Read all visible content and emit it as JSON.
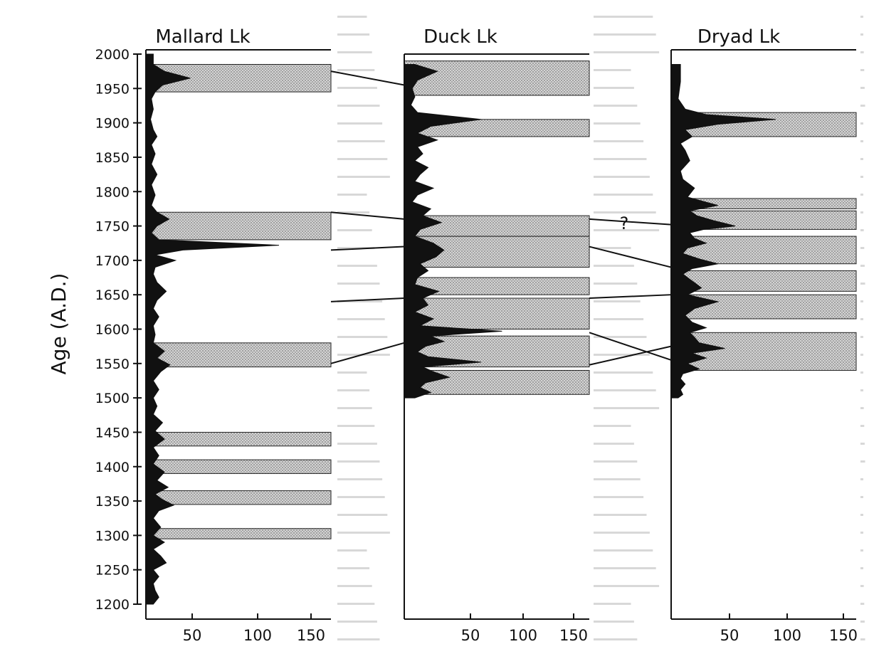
{
  "chart_data": {
    "type": "area",
    "ylabel": "Age (A.D.)",
    "y_ticks": [
      "2000",
      "1950",
      "1900",
      "1850",
      "1800",
      "1750",
      "1700",
      "1650",
      "1600",
      "1550",
      "1500",
      "1450",
      "1400",
      "1350",
      "1300",
      "1250",
      "1200"
    ],
    "ylim": [
      1200,
      2000
    ],
    "correlation_marker": "?",
    "panels": [
      {
        "title": "Mallard Lk",
        "x_ticks": [
          "50",
          "100",
          "150"
        ],
        "xlim": [
          0,
          160
        ],
        "ages": [
          2000,
          1985,
          1975,
          1965,
          1955,
          1945,
          1935,
          1920,
          1905,
          1890,
          1880,
          1868,
          1855,
          1840,
          1825,
          1810,
          1795,
          1780,
          1770,
          1760,
          1750,
          1740,
          1730,
          1722,
          1715,
          1708,
          1700,
          1690,
          1680,
          1668,
          1655,
          1642,
          1630,
          1618,
          1605,
          1592,
          1580,
          1568,
          1558,
          1548,
          1538,
          1525,
          1512,
          1500,
          1488,
          1476,
          1464,
          1452,
          1440,
          1428,
          1416,
          1404,
          1392,
          1380,
          1370,
          1360,
          1352,
          1344,
          1336,
          1325,
          1312,
          1300,
          1290,
          1280,
          1270,
          1260,
          1250,
          1240,
          1230,
          1220,
          1210,
          1200
        ],
        "values": [
          8,
          8,
          20,
          48,
          18,
          10,
          6,
          8,
          5,
          8,
          12,
          6,
          10,
          6,
          12,
          6,
          10,
          6,
          12,
          25,
          12,
          6,
          14,
          120,
          40,
          10,
          32,
          10,
          8,
          12,
          22,
          12,
          8,
          14,
          8,
          10,
          8,
          20,
          12,
          26,
          16,
          8,
          14,
          8,
          12,
          8,
          18,
          10,
          20,
          8,
          14,
          8,
          20,
          12,
          24,
          10,
          18,
          30,
          14,
          8,
          16,
          8,
          20,
          8,
          16,
          22,
          8,
          14,
          8,
          10,
          14,
          8
        ],
        "shaded_intervals": [
          [
            1945,
            1985
          ],
          [
            1730,
            1770
          ],
          [
            1545,
            1580
          ],
          [
            1430,
            1450
          ],
          [
            1390,
            1410
          ],
          [
            1345,
            1365
          ],
          [
            1295,
            1310
          ]
        ],
        "events": [
          1715
        ]
      },
      {
        "title": "Duck Lk",
        "x_ticks": [
          "50",
          "100",
          "150"
        ],
        "xlim": [
          0,
          160
        ],
        "ages": [
          1985,
          1975,
          1962,
          1950,
          1938,
          1926,
          1915,
          1905,
          1895,
          1885,
          1875,
          1865,
          1855,
          1845,
          1835,
          1825,
          1815,
          1805,
          1795,
          1785,
          1775,
          1765,
          1755,
          1745,
          1735,
          1725,
          1715,
          1705,
          1695,
          1685,
          1675,
          1665,
          1655,
          1645,
          1635,
          1625,
          1615,
          1605,
          1597,
          1590,
          1582,
          1575,
          1567,
          1560,
          1552,
          1545,
          1538,
          1530,
          1522,
          1515,
          1508,
          1500
        ],
        "values": [
          8,
          25,
          10,
          6,
          8,
          5,
          10,
          60,
          20,
          10,
          25,
          10,
          14,
          8,
          18,
          12,
          8,
          22,
          10,
          6,
          20,
          14,
          28,
          12,
          8,
          22,
          30,
          24,
          12,
          18,
          10,
          8,
          26,
          14,
          18,
          8,
          22,
          12,
          80,
          20,
          30,
          16,
          10,
          18,
          60,
          14,
          22,
          34,
          16,
          12,
          20,
          8
        ],
        "shaded_intervals": [
          [
            1940,
            1990
          ],
          [
            1880,
            1905
          ],
          [
            1735,
            1765
          ],
          [
            1690,
            1735
          ],
          [
            1650,
            1675
          ],
          [
            1600,
            1645
          ],
          [
            1545,
            1590
          ],
          [
            1505,
            1540
          ]
        ],
        "events": [
          1720,
          1645,
          1548
        ]
      },
      {
        "title": "Dryad Lk",
        "x_ticks": [
          "50",
          "100",
          "150"
        ],
        "xlim": [
          0,
          160
        ],
        "ages": [
          1985,
          1960,
          1935,
          1920,
          1912,
          1905,
          1898,
          1890,
          1880,
          1870,
          1860,
          1845,
          1830,
          1818,
          1805,
          1792,
          1780,
          1772,
          1765,
          1758,
          1750,
          1745,
          1740,
          1732,
          1725,
          1718,
          1710,
          1702,
          1695,
          1688,
          1680,
          1670,
          1660,
          1650,
          1640,
          1630,
          1620,
          1610,
          1602,
          1595,
          1588,
          1580,
          1572,
          1565,
          1558,
          1550,
          1542,
          1535,
          1528,
          1520,
          1512,
          1505,
          1500
        ],
        "values": [
          8,
          8,
          6,
          12,
          30,
          90,
          40,
          12,
          18,
          8,
          12,
          16,
          8,
          10,
          20,
          14,
          40,
          16,
          22,
          36,
          55,
          28,
          16,
          20,
          30,
          14,
          10,
          24,
          40,
          18,
          10,
          18,
          26,
          14,
          40,
          20,
          12,
          18,
          30,
          16,
          20,
          24,
          46,
          18,
          30,
          14,
          24,
          10,
          8,
          12,
          8,
          10,
          6
        ],
        "shaded_intervals": [
          [
            1880,
            1915
          ],
          [
            1775,
            1790
          ],
          [
            1745,
            1772
          ],
          [
            1695,
            1735
          ],
          [
            1655,
            1685
          ],
          [
            1615,
            1650
          ],
          [
            1540,
            1595
          ]
        ],
        "events": [
          1755
        ]
      }
    ]
  }
}
